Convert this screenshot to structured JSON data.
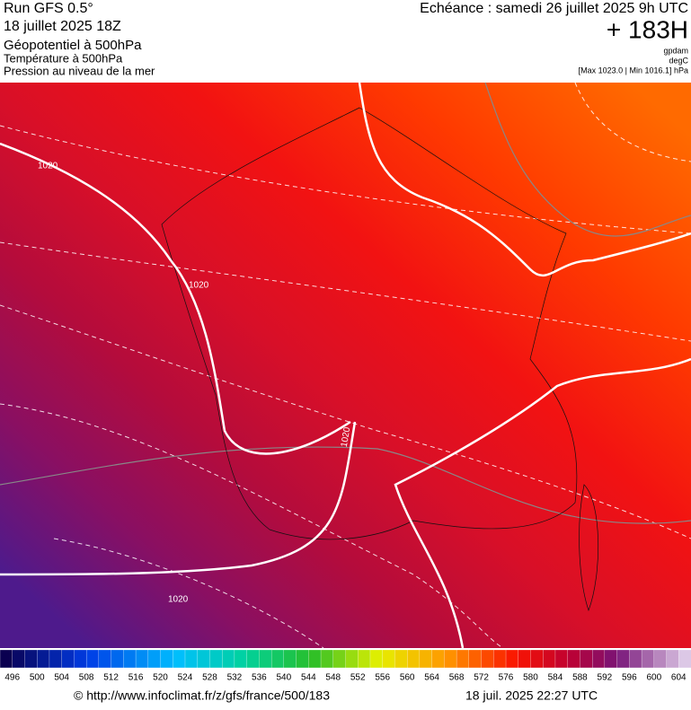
{
  "header": {
    "run": "Run GFS 0.5°",
    "date": "18 juillet 2025 18Z",
    "field1": "Géopotentiel à 500hPa",
    "field2": "Température à 500hPa",
    "field3": "Pression au niveau de la mer",
    "valid": "Echéance : samedi 26 juillet 2025 9h UTC",
    "lead": "+ 183H",
    "unit1": "gpdam",
    "unit2": "degC",
    "unit3": "[Max 1023.0 | Min 1016.1] hPa"
  },
  "map": {
    "isobar_labels": [
      "1020",
      "1020",
      "1020",
      "1020"
    ]
  },
  "colorbar": {
    "labels": [
      496,
      500,
      504,
      508,
      512,
      516,
      520,
      524,
      528,
      532,
      536,
      540,
      544,
      548,
      552,
      556,
      560,
      564,
      568,
      572,
      576,
      580,
      584,
      588,
      592,
      596,
      600,
      604
    ]
  },
  "footer": {
    "url": "© http://www.infoclimat.fr/z/gfs/france/500/183",
    "timestamp": "18 juil. 2025 22:27 UTC"
  }
}
